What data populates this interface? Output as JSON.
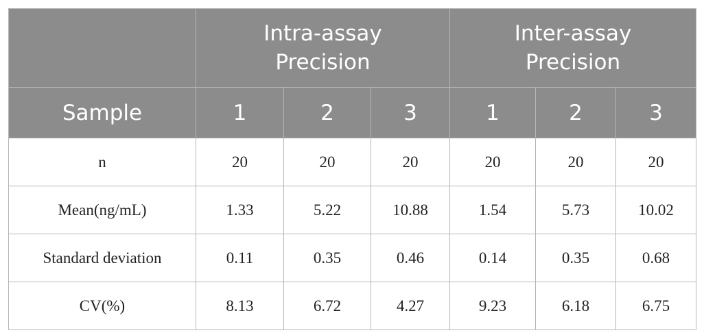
{
  "table": {
    "corner": "Sample",
    "groups": [
      "Intra-assay Precision",
      "Inter-assay Precision"
    ],
    "columns": [
      "1",
      "2",
      "3",
      "1",
      "2",
      "3"
    ],
    "rows": [
      [
        "n",
        20,
        20,
        20,
        20,
        20,
        20
      ],
      [
        "Mean(ng/mL)",
        1.33,
        5.22,
        10.88,
        1.54,
        5.73,
        10.02
      ],
      [
        "Standard deviation",
        0.11,
        0.35,
        0.46,
        0.14,
        0.35,
        0.68
      ],
      [
        "CV(%)",
        8.13,
        6.72,
        4.27,
        9.23,
        6.18,
        6.75
      ]
    ]
  }
}
